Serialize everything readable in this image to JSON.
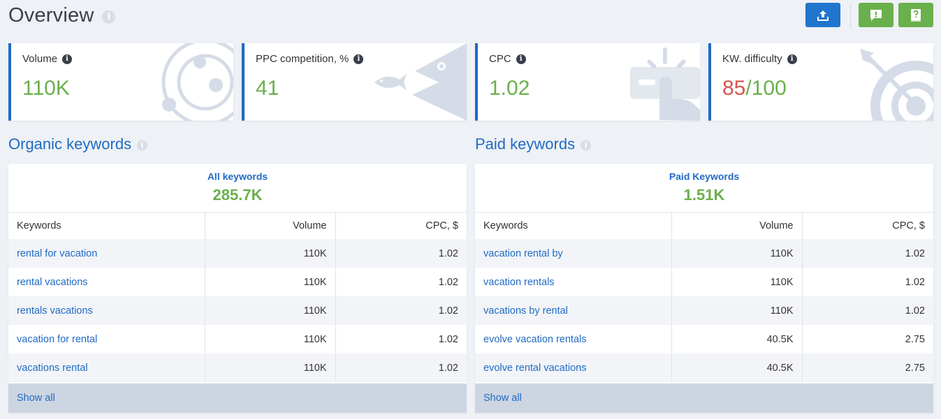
{
  "header": {
    "title": "Overview",
    "info_glyph": "i",
    "buttons": [
      {
        "name": "export-button",
        "icon": "upload-icon",
        "color": "#1f76cc"
      },
      {
        "name": "feedback-button",
        "icon": "exclamation-icon",
        "color": "#6ab04c"
      },
      {
        "name": "help-button",
        "icon": "question-book-icon",
        "color": "#6ab04c"
      }
    ]
  },
  "metrics": [
    {
      "label": "Volume",
      "value": "110K",
      "art": "target-orbit-art"
    },
    {
      "label": "PPC competition, %",
      "value": "41",
      "art": "big-fish-small-fish-art"
    },
    {
      "label": "CPC",
      "value": "1.02",
      "art": "click-hand-art"
    },
    {
      "label": "KW. difficulty",
      "value_part1": "85",
      "value_part2": "/100",
      "art": "arrow-target-art"
    }
  ],
  "colors": {
    "accent_blue": "#1f6bc4",
    "value_green": "#6ab04c",
    "difficulty_red": "#d9534f"
  },
  "organic": {
    "title": "Organic keywords",
    "summary_label": "All keywords",
    "summary_value": "285.7K",
    "columns": [
      "Keywords",
      "Volume",
      "CPC, $"
    ],
    "rows": [
      {
        "keyword": "rental for vacation",
        "volume": "110K",
        "cpc": "1.02"
      },
      {
        "keyword": "rental vacations",
        "volume": "110K",
        "cpc": "1.02"
      },
      {
        "keyword": "rentals vacations",
        "volume": "110K",
        "cpc": "1.02"
      },
      {
        "keyword": "vacation for rental",
        "volume": "110K",
        "cpc": "1.02"
      },
      {
        "keyword": "vacations rental",
        "volume": "110K",
        "cpc": "1.02"
      }
    ],
    "show_all": "Show all"
  },
  "paid": {
    "title": "Paid keywords",
    "summary_label": "Paid Keywords",
    "summary_value": "1.51K",
    "columns": [
      "Keywords",
      "Volume",
      "CPC, $"
    ],
    "rows": [
      {
        "keyword": "vacation rental by",
        "volume": "110K",
        "cpc": "1.02"
      },
      {
        "keyword": "vacation rentals",
        "volume": "110K",
        "cpc": "1.02"
      },
      {
        "keyword": "vacations by rental",
        "volume": "110K",
        "cpc": "1.02"
      },
      {
        "keyword": "evolve vacation rentals",
        "volume": "40.5K",
        "cpc": "2.75"
      },
      {
        "keyword": "evolve rental vacations",
        "volume": "40.5K",
        "cpc": "2.75"
      }
    ],
    "show_all": "Show all"
  }
}
